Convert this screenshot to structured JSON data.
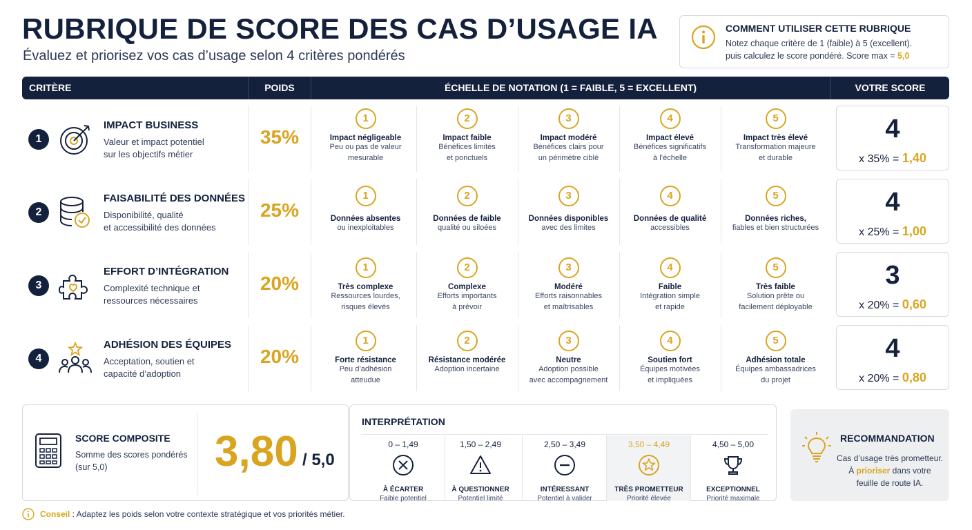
{
  "header": {
    "title": "RUBRIQUE DE SCORE DES CAS D’USAGE IA",
    "subtitle": "Évaluez et priorisez vos cas d’usage selon 4 critères pondérés"
  },
  "howto": {
    "icon": "info-icon",
    "title": "COMMENT UTILISER CETTE RUBRIQUE",
    "line1": "Notez chaque critère de 1 (faible) à 5 (excellent).",
    "line2_prefix": "puis calculez le score pondéré. Score max = ",
    "max_value": "5,0"
  },
  "table_header": {
    "criterion": "CRITÈRE",
    "weight": "POIDS",
    "scale": "ÉCHELLE DE NOTATION (1 = FAIBLE, 5 = EXCELLENT)",
    "score": "VOTRE SCORE"
  },
  "criteria": [
    {
      "number": "1",
      "icon": "target-icon",
      "title": "IMPACT BUSINESS",
      "desc": [
        "Valeur et impact potentiel",
        "sur les objectifs métier"
      ],
      "weight": "35%",
      "levels": [
        {
          "n": "1",
          "title": "Impact négligeable",
          "desc": [
            "Peu ou pas de valeur",
            "mesurable"
          ]
        },
        {
          "n": "2",
          "title": "Impact faible",
          "desc": [
            "Bénéfices limités",
            "et ponctuels"
          ]
        },
        {
          "n": "3",
          "title": "Impact modéré",
          "desc": [
            "Bénéfices clairs pour",
            "un périmètre ciblé"
          ]
        },
        {
          "n": "4",
          "title": "Impact élevé",
          "desc": [
            "Bénéfices significatifs",
            "à l’échelle"
          ]
        },
        {
          "n": "5",
          "title": "Impact très élevé",
          "desc": [
            "Transformation majeure",
            "et durable"
          ]
        }
      ],
      "score": "4",
      "calc_prefix": "x 35% = ",
      "weighted": "1,40"
    },
    {
      "number": "2",
      "icon": "database-check-icon",
      "title": "FAISABILITÉ DES DONNÉES",
      "desc": [
        "Disponibilité, qualité",
        "et accessibilité des données"
      ],
      "weight": "25%",
      "levels": [
        {
          "n": "1",
          "title": "Données absentes",
          "desc": [
            "ou inexploitables"
          ]
        },
        {
          "n": "2",
          "title": "Données de faible",
          "desc": [
            "qualité ou siloées"
          ]
        },
        {
          "n": "3",
          "title": "Données disponibles",
          "desc": [
            "avec des limites"
          ]
        },
        {
          "n": "4",
          "title": "Données de qualité",
          "desc": [
            "accessibles"
          ]
        },
        {
          "n": "5",
          "title": "Données riches,",
          "desc": [
            "fiables et bien structurées"
          ]
        }
      ],
      "score": "4",
      "calc_prefix": "x 25% = ",
      "weighted": "1,00"
    },
    {
      "number": "3",
      "icon": "puzzle-icon",
      "title": "EFFORT D’INTÉGRATION",
      "desc": [
        "Complexité technique et",
        "ressources nécessaires"
      ],
      "weight": "20%",
      "levels": [
        {
          "n": "1",
          "title": "Très complexe",
          "desc": [
            "Ressources lourdes,",
            "risques élevés"
          ]
        },
        {
          "n": "2",
          "title": "Complexe",
          "desc": [
            "Efforts importants",
            "à prévoir"
          ]
        },
        {
          "n": "3",
          "title": "Modéré",
          "desc": [
            "Efforts raisonnables",
            "et maîtrisables"
          ]
        },
        {
          "n": "4",
          "title": "Faible",
          "desc": [
            "Intégration simple",
            "et rapide"
          ]
        },
        {
          "n": "5",
          "title": "Très faible",
          "desc": [
            "Solution prête ou",
            "facilement déployable"
          ]
        }
      ],
      "score": "3",
      "calc_prefix": "x 20% = ",
      "weighted": "0,60"
    },
    {
      "number": "4",
      "icon": "team-star-icon",
      "title": "ADHÉSION DES ÉQUIPES",
      "desc": [
        "Acceptation, soutien et",
        "capacité d’adoption"
      ],
      "weight": "20%",
      "levels": [
        {
          "n": "1",
          "title": "Forte résistance",
          "desc": [
            "Peu d’adhésion",
            "atteudue"
          ]
        },
        {
          "n": "2",
          "title": "Résistance modérée",
          "desc": [
            "Adoption incertaine"
          ]
        },
        {
          "n": "3",
          "title": "Neutre",
          "desc": [
            "Adoption possible",
            "avec accompagnement"
          ]
        },
        {
          "n": "4",
          "title": "Soutien fort",
          "desc": [
            "Équipes motivées",
            "et impliquées"
          ]
        },
        {
          "n": "5",
          "title": "Adhésion totale",
          "desc": [
            "Équipes ambassadrices",
            "du projet"
          ]
        }
      ],
      "score": "4",
      "calc_prefix": "x 20% = ",
      "weighted": "0,80"
    }
  ],
  "composite": {
    "icon": "calculator-icon",
    "title": "SCORE COMPOSITE",
    "desc1": "Somme des scores pondérés",
    "desc2": "(sur 5,0)",
    "value": "3,80",
    "max": "/ 5,0"
  },
  "interpretation": {
    "title": "INTERPRÉTATION",
    "bands": [
      {
        "range": "0 – 1,49",
        "icon": "x-circle-icon",
        "label": "À ÉCARTER",
        "desc": "Faible potentiel"
      },
      {
        "range": "1,50 – 2,49",
        "icon": "warning-icon",
        "label": "À QUESTIONNER",
        "desc": "Potentiel limité"
      },
      {
        "range": "2,50 – 3,49",
        "icon": "minus-circle-icon",
        "label": "INTÉRESSANT",
        "desc": "Potentiel à valider"
      },
      {
        "range": "3,50 – 4,49",
        "icon": "star-circle-icon",
        "label": "TRÈS PROMETTEUR",
        "desc": "Priorité élevée",
        "highlight": true
      },
      {
        "range": "4,50 – 5,00",
        "icon": "trophy-icon",
        "label": "EXCEPTIONNEL",
        "desc": "Priorité maximale"
      }
    ]
  },
  "recommendation": {
    "icon": "lightbulb-icon",
    "title": "RECOMMANDATION",
    "line1": "Cas d’usage très prometteur.",
    "line2_a": "À ",
    "line2_highlight": "prioriser",
    "line2_b": " dans votre",
    "line3": "feuille de route IA."
  },
  "tip": {
    "icon": "info-icon",
    "label": "Conseil",
    "text": " : Adaptez les poids selon votre contexte stratégique et vos priorités métier."
  },
  "colors": {
    "navy": "#14213d",
    "gold": "#d9a520",
    "text": "#2e3a55",
    "border": "#d6d9df"
  }
}
